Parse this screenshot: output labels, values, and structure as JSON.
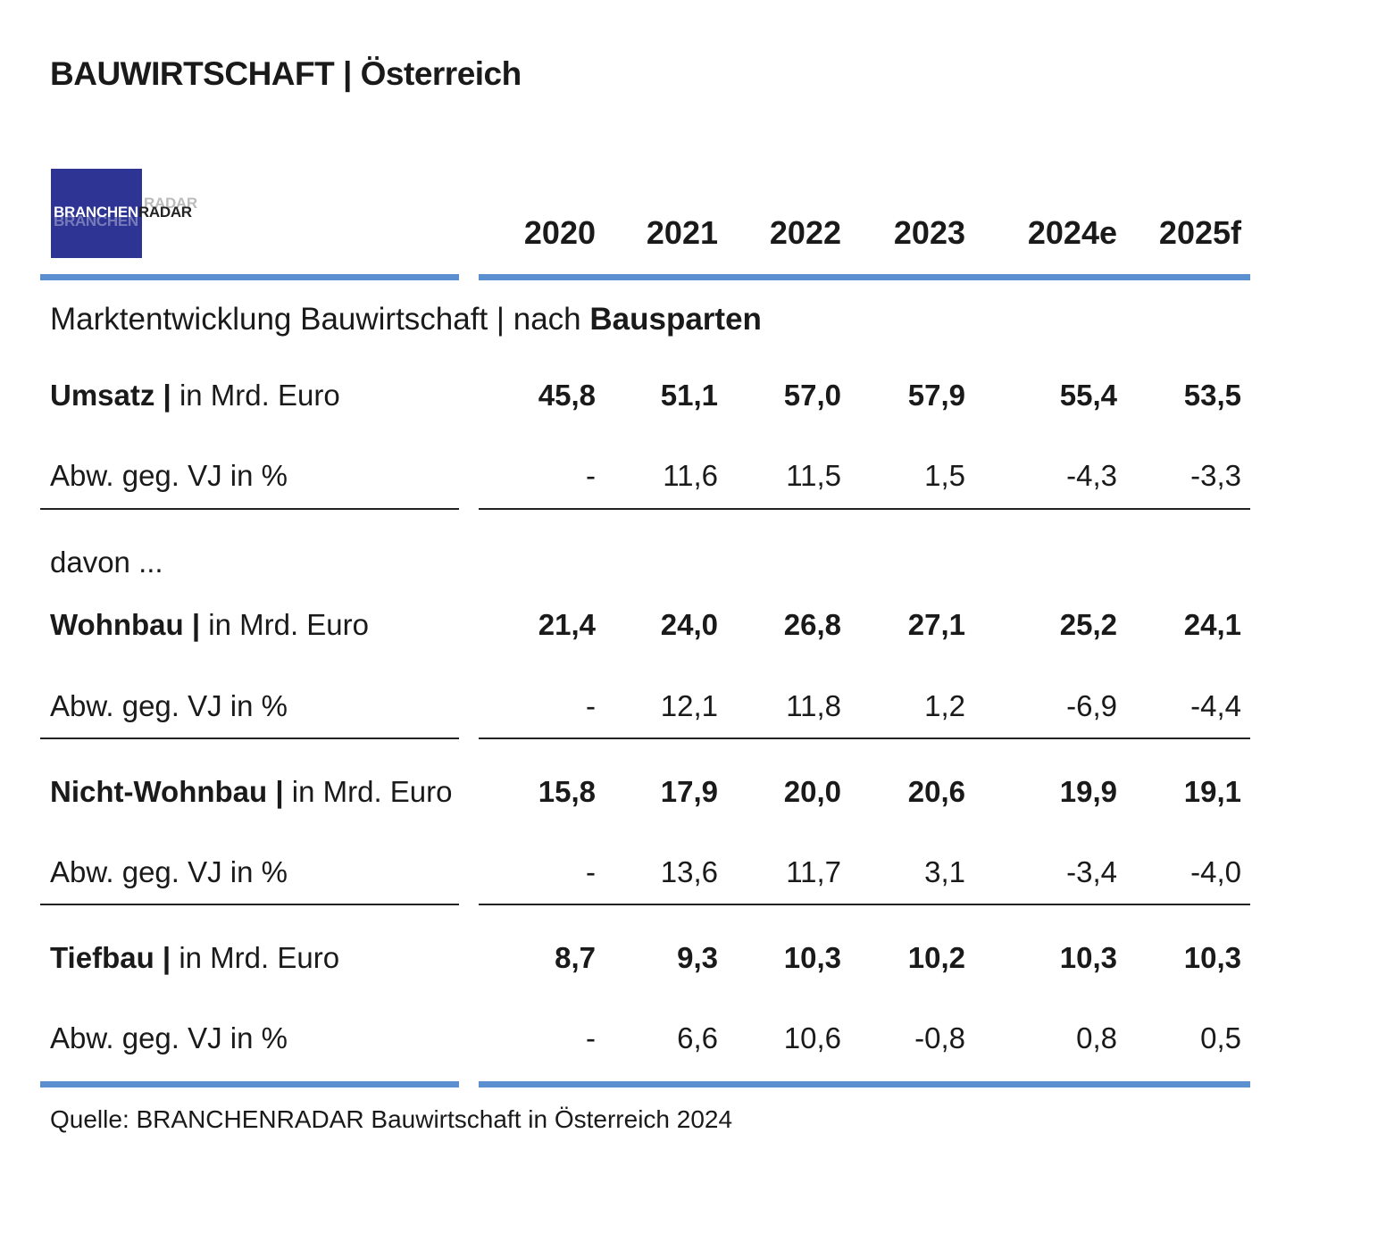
{
  "header": {
    "title": "BAUWIRTSCHAFT | Österreich"
  },
  "logo": {
    "text_primary": "BRANCHEN",
    "text_secondary": "RADAR"
  },
  "years": [
    "2020",
    "2021",
    "2022",
    "2023",
    "2024e",
    "2025f"
  ],
  "section": {
    "label_prefix": "Marktentwicklung Bauwirtschaft | nach ",
    "label_bold": "Bausparten"
  },
  "davon_label": "davon ...",
  "rows": [
    {
      "name_bold": "Umsatz |",
      "name_rest": " in Mrd. Euro",
      "values": [
        "45,8",
        "51,1",
        "57,0",
        "57,9",
        "55,4",
        "53,5"
      ],
      "change_label": "Abw. geg. VJ in %",
      "changes": [
        "-",
        "11,6",
        "11,5",
        "1,5",
        "-4,3",
        "-3,3"
      ]
    },
    {
      "name_bold": "Wohnbau |",
      "name_rest": " in Mrd. Euro",
      "values": [
        "21,4",
        "24,0",
        "26,8",
        "27,1",
        "25,2",
        "24,1"
      ],
      "change_label": "Abw. geg. VJ in %",
      "changes": [
        "-",
        "12,1",
        "11,8",
        "1,2",
        "-6,9",
        "-4,4"
      ]
    },
    {
      "name_bold": "Nicht-Wohnbau |",
      "name_rest": " in Mrd. Euro",
      "values": [
        "15,8",
        "17,9",
        "20,0",
        "20,6",
        "19,9",
        "19,1"
      ],
      "change_label": "Abw. geg. VJ in %",
      "changes": [
        "-",
        "13,6",
        "11,7",
        "3,1",
        "-3,4",
        "-4,0"
      ]
    },
    {
      "name_bold": "Tiefbau |",
      "name_rest": " in Mrd. Euro",
      "values": [
        "8,7",
        "9,3",
        "10,3",
        "10,2",
        "10,3",
        "10,3"
      ],
      "change_label": "Abw. geg. VJ in %",
      "changes": [
        "-",
        "6,6",
        "10,6",
        "-0,8",
        "0,8",
        "0,5"
      ]
    }
  ],
  "source": "Quelle: BRANCHENRADAR Bauwirtschaft in Österreich 2024",
  "colors": {
    "accent_blue": "#5b8fcf",
    "logo_bg": "#2e3494",
    "rule_black": "#222222"
  }
}
